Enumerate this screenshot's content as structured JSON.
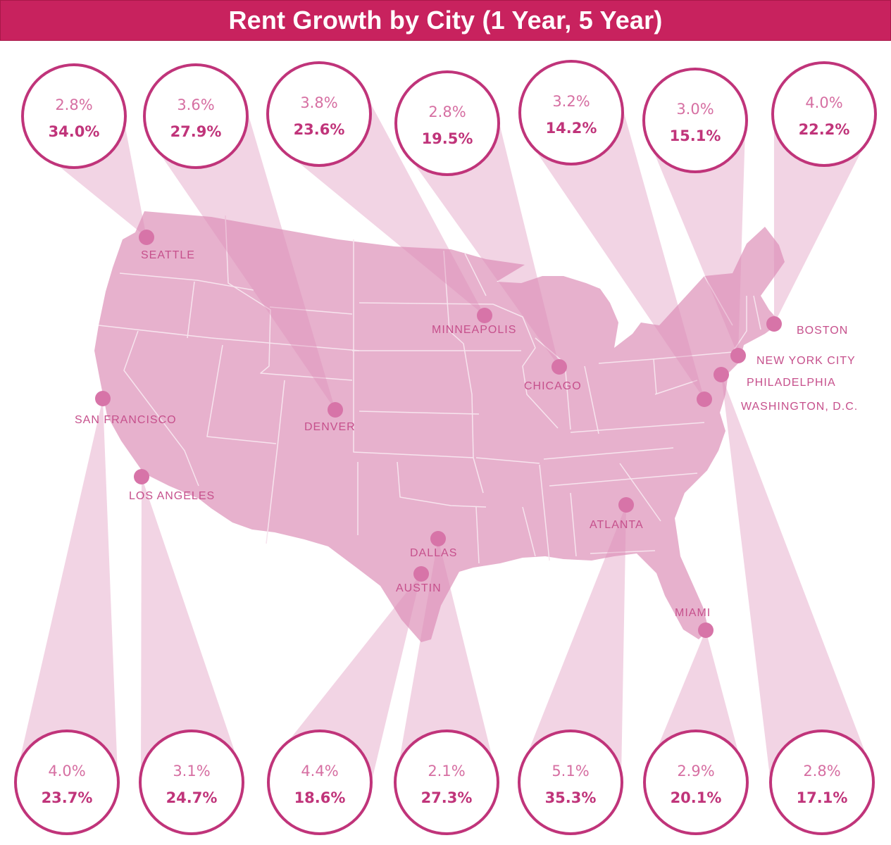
{
  "title": "Rent Growth by City (1 Year, 5 Year)",
  "colors": {
    "title_bar": "#c8225e",
    "map_fill": "#e7b1cd",
    "state_border": "#f7e4ee",
    "beam": "#dc8db7",
    "dot": "#d774a8",
    "ring": "#c0347a",
    "label": "#c6508c",
    "value_1yr": "#d66fa2",
    "value_5yr": "#c0347a"
  },
  "cities": [
    {
      "name": "SEATTLE",
      "one_year": "2.8%",
      "five_year": "34.0%"
    },
    {
      "name": "DENVER",
      "one_year": "3.6%",
      "five_year": "27.9%"
    },
    {
      "name": "MINNEAPOLIS",
      "one_year": "3.8%",
      "five_year": "23.6%"
    },
    {
      "name": "CHICAGO",
      "one_year": "2.8%",
      "five_year": "19.5%"
    },
    {
      "name": "WASHINGTON, D.C.",
      "one_year": "3.2%",
      "five_year": "14.2%"
    },
    {
      "name": "NEW YORK CITY",
      "one_year": "3.0%",
      "five_year": "15.1%"
    },
    {
      "name": "BOSTON",
      "one_year": "4.0%",
      "five_year": "22.2%"
    },
    {
      "name": "SAN FRANCISCO",
      "one_year": "4.0%",
      "five_year": "23.7%"
    },
    {
      "name": "LOS ANGELES",
      "one_year": "3.1%",
      "five_year": "24.7%"
    },
    {
      "name": "AUSTIN",
      "one_year": "4.4%",
      "five_year": "18.6%"
    },
    {
      "name": "DALLAS",
      "one_year": "2.1%",
      "five_year": "27.3%"
    },
    {
      "name": "ATLANTA",
      "one_year": "5.1%",
      "five_year": "35.3%"
    },
    {
      "name": "MIAMI",
      "one_year": "2.9%",
      "five_year": "20.1%"
    },
    {
      "name": "PHILADELPHIA",
      "one_year": "2.8%",
      "five_year": "17.1%"
    }
  ]
}
